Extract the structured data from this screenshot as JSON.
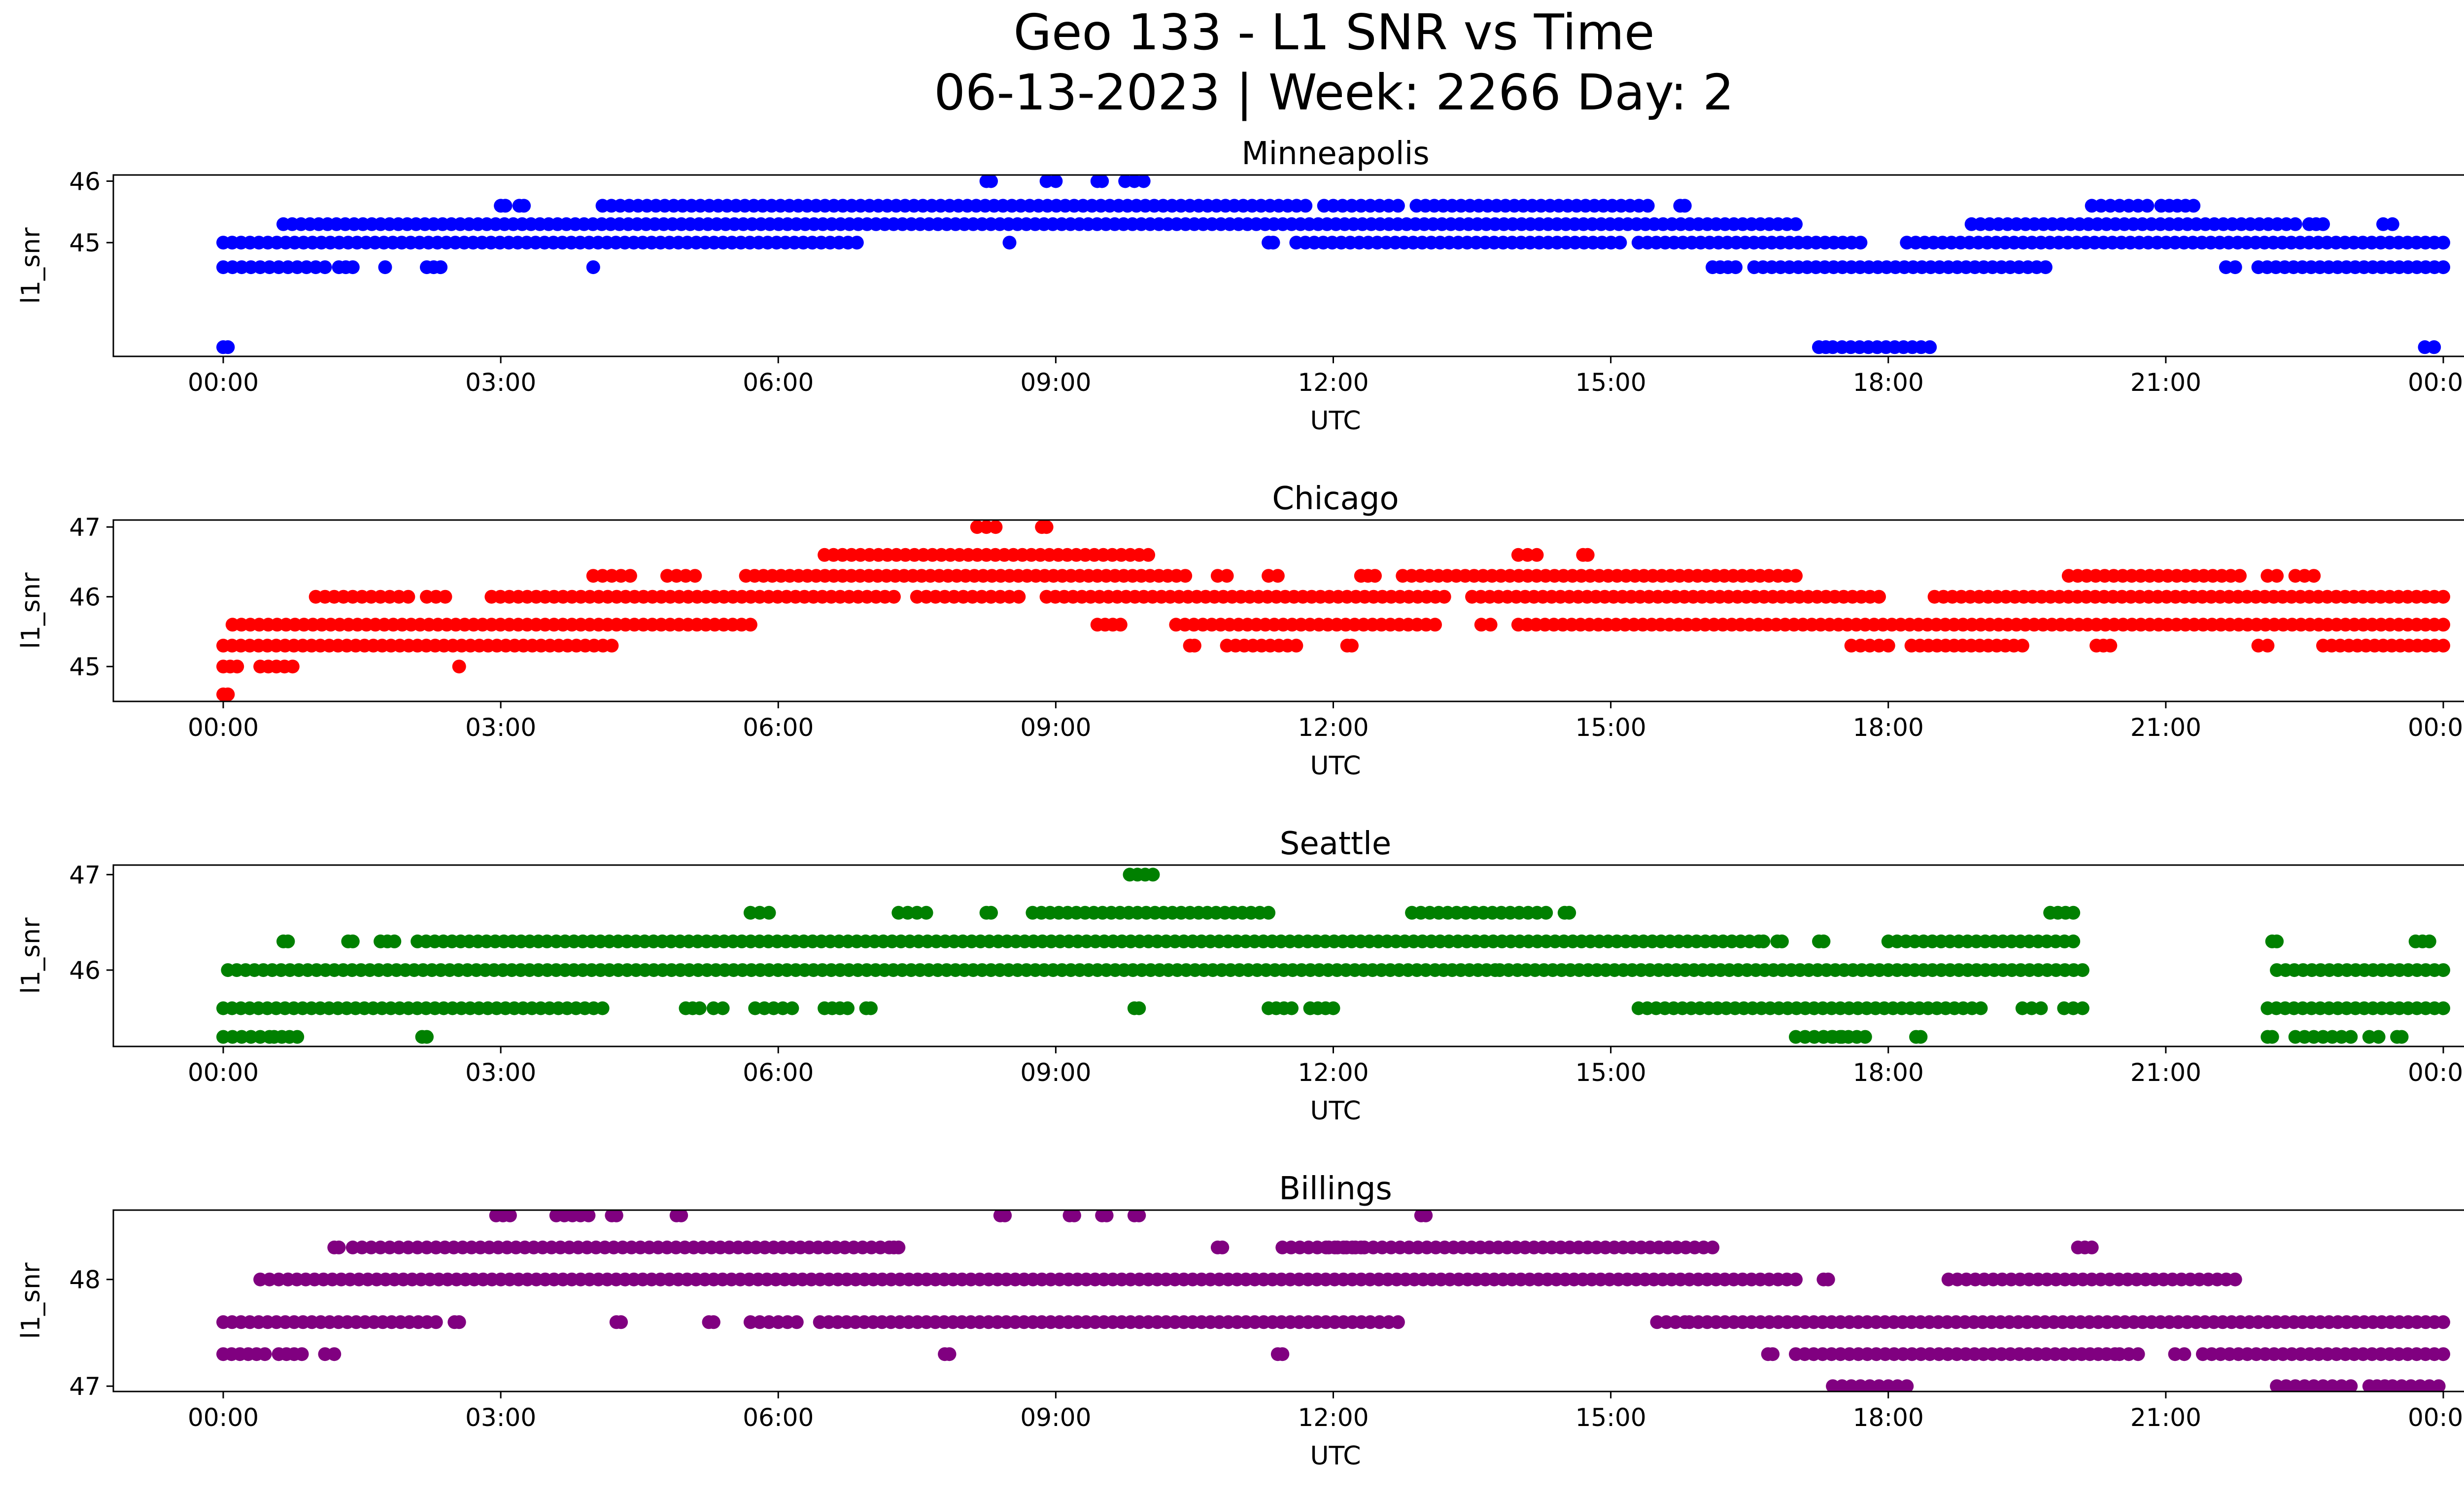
{
  "figure": {
    "title_line1": "Geo 133 - L1 SNR vs Time",
    "title_line2": "06-13-2023 | Week: 2266 Day: 2"
  },
  "chart_data": [
    {
      "type": "scatter",
      "title": "Minneapolis",
      "xlabel": "UTC",
      "ylabel": "l1_snr",
      "color": "#0000ff",
      "xlim": [
        "00:00",
        "24:00"
      ],
      "ylim": [
        43.15,
        46.1
      ],
      "yticks": [
        45,
        46
      ],
      "xticks": [
        "00:00",
        "03:00",
        "06:00",
        "09:00",
        "12:00",
        "15:00",
        "18:00",
        "21:00",
        "00:00"
      ],
      "grid": false,
      "bands": [
        {
          "y": 43.3,
          "ranges": [
            [
              0.0,
              0.05
            ],
            [
              17.25,
              17.4
            ],
            [
              17.5,
              18.45
            ],
            [
              23.8,
              23.9
            ]
          ]
        },
        {
          "y": 44.6,
          "ranges": [
            [
              0.0,
              1.1
            ],
            [
              1.25,
              1.4
            ],
            [
              2.2,
              2.35
            ],
            [
              16.1,
              16.35
            ],
            [
              16.55,
              19.7
            ],
            [
              21.65,
              21.75
            ],
            [
              22.0,
              24.0
            ]
          ]
        },
        {
          "y": 45.0,
          "ranges": [
            [
              0.0,
              6.85
            ],
            [
              11.3,
              11.35
            ],
            [
              11.6,
              15.1
            ],
            [
              15.3,
              17.7
            ],
            [
              18.2,
              24.0
            ]
          ]
        },
        {
          "y": 45.3,
          "ranges": [
            [
              0.65,
              17.0
            ],
            [
              18.9,
              22.4
            ],
            [
              22.55,
              22.7
            ],
            [
              23.35,
              23.45
            ]
          ]
        },
        {
          "y": 45.6,
          "ranges": [
            [
              3.0,
              3.05
            ],
            [
              3.2,
              3.25
            ],
            [
              4.1,
              11.7
            ],
            [
              11.9,
              12.7
            ],
            [
              12.9,
              15.4
            ],
            [
              15.75,
              15.8
            ],
            [
              20.2,
              20.8
            ],
            [
              20.95,
              21.3
            ]
          ]
        },
        {
          "y": 46.0,
          "ranges": [
            [
              8.25,
              8.3
            ],
            [
              8.9,
              9.0
            ],
            [
              9.45,
              9.5
            ],
            [
              9.75,
              9.95
            ]
          ]
        }
      ],
      "points": [
        [
          1.75,
          44.6
        ],
        [
          4.0,
          44.6
        ],
        [
          8.5,
          45.0
        ]
      ]
    },
    {
      "type": "scatter",
      "title": "Chicago",
      "xlabel": "UTC",
      "ylabel": "l1_snr",
      "color": "#ff0000",
      "xlim": [
        "00:00",
        "24:00"
      ],
      "ylim": [
        44.5,
        47.1
      ],
      "yticks": [
        45,
        46,
        47
      ],
      "xticks": [
        "00:00",
        "03:00",
        "06:00",
        "09:00",
        "12:00",
        "15:00",
        "18:00",
        "21:00",
        "00:00"
      ],
      "grid": false,
      "bands": [
        {
          "y": 44.6,
          "ranges": [
            [
              0.0,
              0.05
            ]
          ]
        },
        {
          "y": 45.0,
          "ranges": [
            [
              0.0,
              0.15
            ],
            [
              0.4,
              0.75
            ]
          ]
        },
        {
          "y": 45.3,
          "ranges": [
            [
              0.0,
              4.2
            ],
            [
              10.45,
              10.5
            ],
            [
              10.85,
              11.6
            ],
            [
              12.15,
              12.2
            ],
            [
              17.6,
              18.0
            ],
            [
              18.25,
              19.45
            ],
            [
              20.25,
              20.4
            ],
            [
              22.0,
              22.1
            ],
            [
              22.7,
              24.0
            ]
          ]
        },
        {
          "y": 45.6,
          "ranges": [
            [
              0.1,
              5.7
            ],
            [
              9.45,
              9.7
            ],
            [
              10.3,
              13.1
            ],
            [
              13.6,
              13.7
            ],
            [
              14.0,
              24.0
            ]
          ]
        },
        {
          "y": 46.0,
          "ranges": [
            [
              1.0,
              2.0
            ],
            [
              2.2,
              2.4
            ],
            [
              2.9,
              7.25
            ],
            [
              7.5,
              8.6
            ],
            [
              8.9,
              13.2
            ],
            [
              13.5,
              17.9
            ],
            [
              18.5,
              24.0
            ]
          ]
        },
        {
          "y": 46.3,
          "ranges": [
            [
              4.0,
              4.4
            ],
            [
              4.8,
              5.1
            ],
            [
              5.65,
              10.4
            ],
            [
              10.75,
              10.85
            ],
            [
              11.3,
              11.4
            ],
            [
              12.3,
              12.45
            ],
            [
              12.75,
              17.0
            ],
            [
              19.95,
              21.8
            ],
            [
              22.1,
              22.2
            ],
            [
              22.4,
              22.6
            ]
          ]
        },
        {
          "y": 46.6,
          "ranges": [
            [
              6.5,
              10.0
            ],
            [
              14.0,
              14.2
            ],
            [
              14.7,
              14.75
            ]
          ]
        },
        {
          "y": 47.0,
          "ranges": [
            [
              8.15,
              8.35
            ],
            [
              8.85,
              8.9
            ]
          ]
        }
      ],
      "points": [
        [
          2.55,
          45.0
        ],
        [
          8.3,
          46.0
        ]
      ]
    },
    {
      "type": "scatter",
      "title": "Seattle",
      "xlabel": "UTC",
      "ylabel": "l1_snr",
      "color": "#008000",
      "xlim": [
        "00:00",
        "24:00"
      ],
      "ylim": [
        45.2,
        47.1
      ],
      "yticks": [
        46,
        47
      ],
      "xticks": [
        "00:00",
        "03:00",
        "06:00",
        "09:00",
        "12:00",
        "15:00",
        "18:00",
        "21:00",
        "00:00"
      ],
      "grid": false,
      "bands": [
        {
          "y": 45.3,
          "ranges": [
            [
              0.0,
              0.5
            ],
            [
              0.55,
              0.8
            ],
            [
              2.15,
              2.2
            ],
            [
              17.0,
              17.5
            ],
            [
              17.3,
              17.75
            ],
            [
              18.3,
              18.35
            ],
            [
              22.1,
              22.15
            ],
            [
              22.4,
              23.0
            ],
            [
              23.2,
              23.3
            ],
            [
              23.5,
              23.55
            ]
          ]
        },
        {
          "y": 45.6,
          "ranges": [
            [
              0.0,
              4.1
            ],
            [
              5.0,
              5.15
            ],
            [
              5.3,
              5.4
            ],
            [
              5.75,
              6.15
            ],
            [
              6.5,
              6.75
            ],
            [
              6.95,
              7.0
            ],
            [
              9.85,
              9.9
            ],
            [
              11.3,
              11.55
            ],
            [
              11.75,
              12.0
            ],
            [
              15.3,
              19.0
            ],
            [
              19.45,
              19.65
            ],
            [
              19.9,
              20.1
            ],
            [
              22.1,
              24.0
            ]
          ]
        },
        {
          "y": 46.0,
          "ranges": [
            [
              0.05,
              13.0
            ],
            [
              13.1,
              13.75
            ],
            [
              13.8,
              20.1
            ],
            [
              22.2,
              24.0
            ]
          ]
        },
        {
          "y": 46.3,
          "ranges": [
            [
              0.65,
              0.7
            ],
            [
              1.35,
              1.4
            ],
            [
              1.7,
              1.85
            ],
            [
              2.1,
              3.5
            ],
            [
              3.6,
              16.5
            ],
            [
              16.6,
              16.65
            ],
            [
              16.8,
              16.85
            ],
            [
              17.25,
              17.3
            ],
            [
              18.0,
              20.0
            ],
            [
              22.15,
              22.2
            ],
            [
              23.7,
              23.85
            ]
          ]
        },
        {
          "y": 46.6,
          "ranges": [
            [
              5.7,
              5.9
            ],
            [
              7.3,
              7.6
            ],
            [
              8.25,
              8.3
            ],
            [
              8.75,
              11.3
            ],
            [
              12.85,
              14.3
            ],
            [
              14.5,
              14.55
            ],
            [
              19.75,
              20.0
            ]
          ]
        },
        {
          "y": 47.0,
          "ranges": [
            [
              9.8,
              10.05
            ]
          ]
        }
      ],
      "points": []
    },
    {
      "type": "scatter",
      "title": "Billings",
      "xlabel": "UTC",
      "ylabel": "l1_snr",
      "color": "#800080",
      "xlim": [
        "00:00",
        "24:00"
      ],
      "ylim": [
        46.95,
        48.65
      ],
      "yticks": [
        47,
        48
      ],
      "xticks": [
        "00:00",
        "03:00",
        "06:00",
        "09:00",
        "12:00",
        "15:00",
        "18:00",
        "21:00",
        "00:00"
      ],
      "grid": false,
      "bands": [
        {
          "y": 47.0,
          "ranges": [
            [
              17.4,
              18.2
            ],
            [
              22.2,
              22.7
            ],
            [
              22.8,
              23.0
            ],
            [
              23.2,
              23.45
            ],
            [
              23.55,
              23.95
            ]
          ]
        },
        {
          "y": 47.3,
          "ranges": [
            [
              0.0,
              0.45
            ],
            [
              0.6,
              0.85
            ],
            [
              1.1,
              1.2
            ],
            [
              7.8,
              7.85
            ],
            [
              11.4,
              11.45
            ],
            [
              16.7,
              16.75
            ],
            [
              17.0,
              19.9
            ],
            [
              20.0,
              20.45
            ],
            [
              20.5,
              20.7
            ],
            [
              21.1,
              21.2
            ],
            [
              21.4,
              24.0
            ]
          ]
        },
        {
          "y": 47.6,
          "ranges": [
            [
              0.0,
              2.3
            ],
            [
              2.5,
              2.55
            ],
            [
              4.25,
              4.3
            ],
            [
              5.25,
              5.3
            ],
            [
              5.7,
              6.2
            ],
            [
              6.45,
              12.4
            ],
            [
              12.5,
              12.7
            ],
            [
              15.5,
              15.8
            ],
            [
              15.85,
              22.0
            ],
            [
              22.1,
              24.0
            ]
          ]
        },
        {
          "y": 48.0,
          "ranges": [
            [
              0.4,
              0.7
            ],
            [
              0.7,
              17.0
            ],
            [
              17.3,
              17.35
            ],
            [
              18.65,
              21.75
            ]
          ]
        },
        {
          "y": 48.3,
          "ranges": [
            [
              1.2,
              1.25
            ],
            [
              1.4,
              2.3
            ],
            [
              2.3,
              7.2
            ],
            [
              7.25,
              7.3
            ],
            [
              10.75,
              10.8
            ],
            [
              11.45,
              12.3
            ],
            [
              11.95,
              16.1
            ],
            [
              20.05,
              20.2
            ]
          ]
        },
        {
          "y": 48.6,
          "ranges": [
            [
              2.95,
              3.1
            ],
            [
              3.6,
              3.95
            ],
            [
              4.2,
              4.25
            ],
            [
              4.9,
              4.95
            ],
            [
              8.4,
              8.45
            ],
            [
              9.15,
              9.2
            ],
            [
              9.5,
              9.55
            ],
            [
              9.85,
              9.9
            ],
            [
              12.95,
              13.0
            ]
          ]
        }
      ],
      "points": []
    }
  ]
}
